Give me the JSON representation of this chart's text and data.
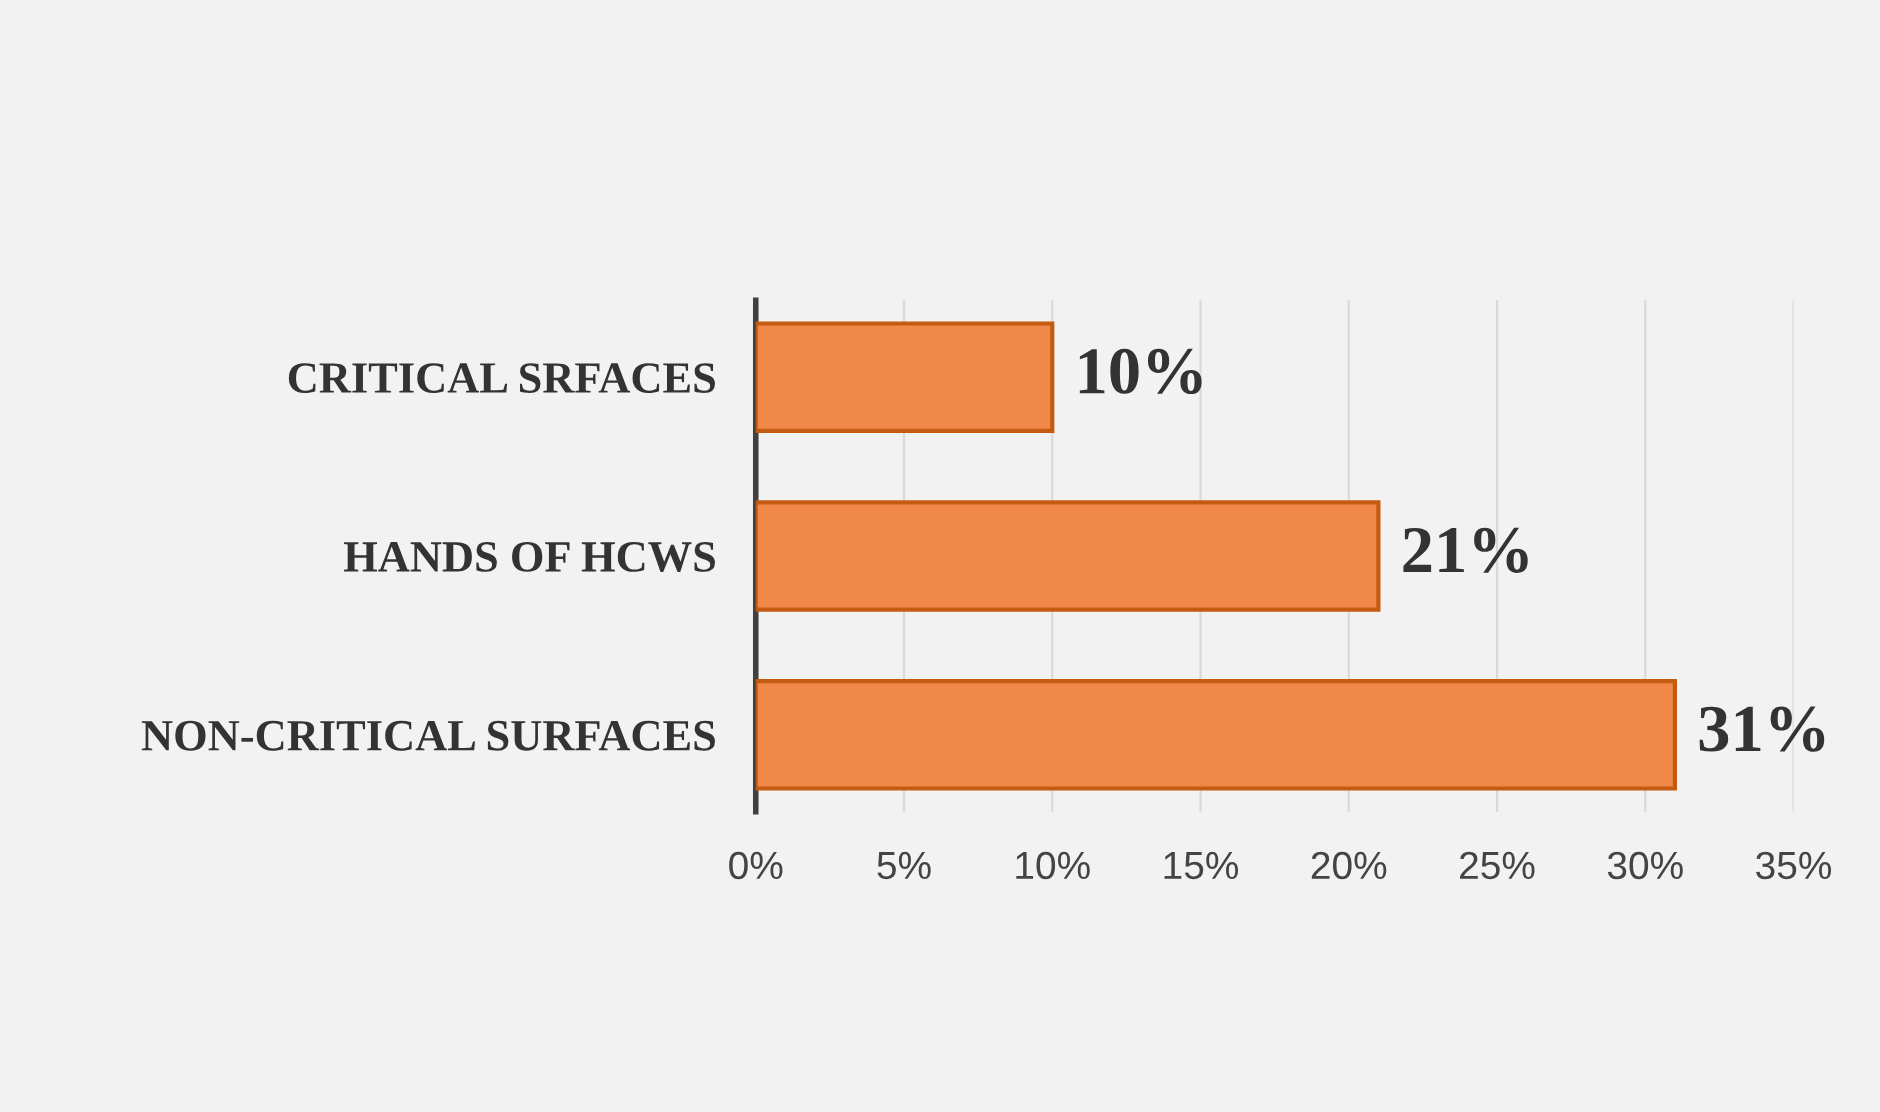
{
  "chart_data": {
    "type": "bar",
    "orientation": "horizontal",
    "categories": [
      "CRITICAL SRFACES",
      "HANDS OF HCWS",
      "NON-CRITICAL SURFACES"
    ],
    "values": [
      10,
      21,
      31
    ],
    "value_labels": [
      "10%",
      "21%",
      "31%"
    ],
    "color": "#f0884a",
    "xlim": [
      0,
      35
    ],
    "xticks": [
      {
        "value": 0,
        "label": "0%"
      },
      {
        "value": 5,
        "label": "5%"
      },
      {
        "value": 10,
        "label": "10%"
      },
      {
        "value": 15,
        "label": "15%"
      },
      {
        "value": 20,
        "label": "20%"
      },
      {
        "value": 25,
        "label": "25%"
      },
      {
        "value": 30,
        "label": "30%"
      },
      {
        "value": 35,
        "label": "35%"
      }
    ],
    "grid": "x"
  }
}
